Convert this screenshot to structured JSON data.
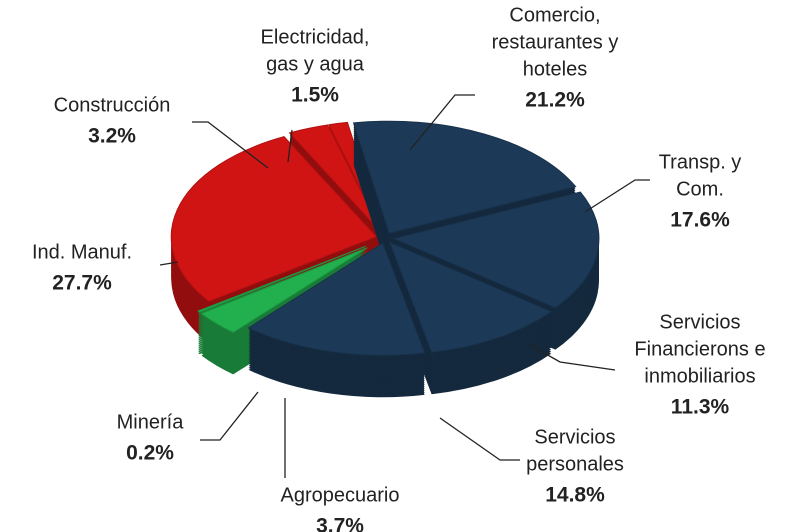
{
  "chart_data": {
    "type": "pie",
    "categories": [
      [
        "Comercio,",
        "restaurantes y",
        "hoteles"
      ],
      [
        "Transp. y",
        "Com."
      ],
      [
        "Servicios",
        "Financierons e",
        "inmobiliarios"
      ],
      [
        "Servicios",
        "personales"
      ],
      [
        "Agropecuario"
      ],
      [
        "Minería"
      ],
      [
        "Ind. Manuf."
      ],
      [
        "Construcción"
      ],
      [
        "Electricidad,",
        "gas y agua"
      ]
    ],
    "values": [
      21.2,
      17.6,
      11.3,
      14.8,
      3.7,
      0.2,
      27.7,
      3.2,
      1.5
    ],
    "value_labels": [
      "21.2%",
      "17.6%",
      "11.3%",
      "14.8%",
      "3.7%",
      "0.2%",
      "27.7%",
      "3.2%",
      "1.5%"
    ],
    "colors": [
      "#1c3a57",
      "#1c3a57",
      "#1c3a57",
      "#1c3a57",
      "#22b04e",
      "#22b04e",
      "#d01414",
      "#d01414",
      "#d01414"
    ]
  }
}
